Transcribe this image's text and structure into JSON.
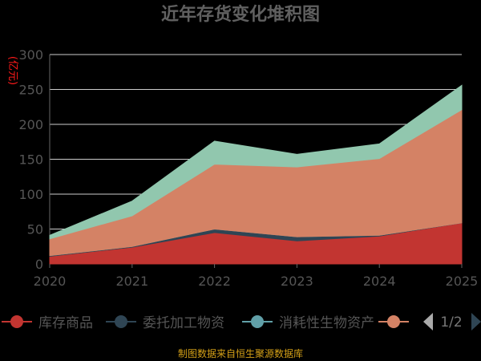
{
  "chart_data": {
    "type": "area",
    "stacked": true,
    "title": "近年存货变化堆积图",
    "ylabel": "(亿元)",
    "xlabel": "",
    "categories": [
      "2020",
      "2021",
      "2022",
      "2023",
      "2024",
      "2025"
    ],
    "ylim": [
      0,
      300
    ],
    "yticks": [
      0,
      50,
      100,
      150,
      200,
      250,
      300
    ],
    "series": [
      {
        "name": "库存商品",
        "color": "#c23531",
        "values": [
          11,
          24,
          45,
          33,
          40,
          59
        ]
      },
      {
        "name": "委托加工物资",
        "color": "#2f4554",
        "values": [
          1,
          1,
          5,
          6,
          1,
          0
        ]
      },
      {
        "name": "消耗性生物资产",
        "color": "#61a0a8",
        "values": [
          0,
          0,
          0,
          0,
          0,
          0
        ]
      },
      {
        "name": "",
        "color": "#d48265",
        "values": [
          24,
          44,
          93,
          100,
          110,
          162
        ]
      },
      {
        "name": "",
        "color": "#91c7ae",
        "values": [
          5,
          21,
          33,
          18,
          21,
          35
        ]
      }
    ],
    "legend": {
      "position": "bottom",
      "visible_items": [
        "库存商品",
        "委托加工物资",
        "消耗性生物资产",
        ""
      ],
      "page": "1/2"
    },
    "source": "制图数据来自恒生聚源数据库"
  }
}
